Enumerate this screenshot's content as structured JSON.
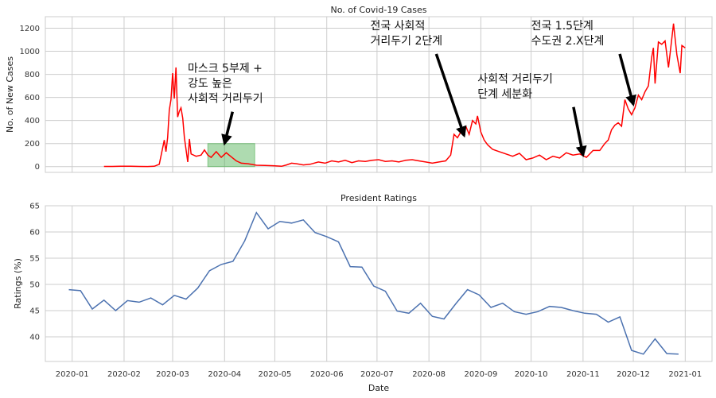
{
  "chart_data": [
    {
      "type": "line",
      "title": "No. of Covid-19 Cases",
      "ylabel": "No. of New Cases",
      "xlabel": "",
      "ylim": [
        -50,
        1300
      ],
      "yticks": [
        0,
        200,
        400,
        600,
        800,
        1000,
        1200
      ],
      "grid": true,
      "line_color": "#ff0000",
      "highlight": {
        "x0": "2020-03-22",
        "x1": "2020-04-19",
        "y0": 0,
        "y1": 200,
        "color": "#4caf50"
      },
      "series": [
        {
          "values": [
            [
              "2020-01-20",
              2
            ],
            [
              "2020-01-25",
              2
            ],
            [
              "2020-01-30",
              3
            ],
            [
              "2020-02-05",
              4
            ],
            [
              "2020-02-10",
              2
            ],
            [
              "2020-02-15",
              1
            ],
            [
              "2020-02-19",
              3
            ],
            [
              "2020-02-22",
              20
            ],
            [
              "2020-02-24",
              160
            ],
            [
              "2020-02-25",
              230
            ],
            [
              "2020-02-26",
              130
            ],
            [
              "2020-02-27",
              250
            ],
            [
              "2020-02-28",
              490
            ],
            [
              "2020-02-29",
              580
            ],
            [
              "2020-03-01",
              810
            ],
            [
              "2020-03-02",
              590
            ],
            [
              "2020-03-03",
              860
            ],
            [
              "2020-03-04",
              430
            ],
            [
              "2020-03-05",
              480
            ],
            [
              "2020-03-06",
              510
            ],
            [
              "2020-03-07",
              420
            ],
            [
              "2020-03-08",
              250
            ],
            [
              "2020-03-10",
              40
            ],
            [
              "2020-03-11",
              240
            ],
            [
              "2020-03-12",
              110
            ],
            [
              "2020-03-15",
              90
            ],
            [
              "2020-03-18",
              100
            ],
            [
              "2020-03-20",
              145
            ],
            [
              "2020-03-22",
              100
            ],
            [
              "2020-03-24",
              80
            ],
            [
              "2020-03-27",
              130
            ],
            [
              "2020-03-30",
              80
            ],
            [
              "2020-04-02",
              120
            ],
            [
              "2020-04-05",
              85
            ],
            [
              "2020-04-08",
              50
            ],
            [
              "2020-04-11",
              30
            ],
            [
              "2020-04-15",
              25
            ],
            [
              "2020-04-20",
              12
            ],
            [
              "2020-04-25",
              10
            ],
            [
              "2020-04-30",
              8
            ],
            [
              "2020-05-05",
              3
            ],
            [
              "2020-05-08",
              15
            ],
            [
              "2020-05-11",
              30
            ],
            [
              "2020-05-14",
              25
            ],
            [
              "2020-05-18",
              15
            ],
            [
              "2020-05-22",
              20
            ],
            [
              "2020-05-27",
              40
            ],
            [
              "2020-05-31",
              30
            ],
            [
              "2020-06-04",
              50
            ],
            [
              "2020-06-08",
              40
            ],
            [
              "2020-06-12",
              55
            ],
            [
              "2020-06-16",
              35
            ],
            [
              "2020-06-20",
              50
            ],
            [
              "2020-06-24",
              45
            ],
            [
              "2020-06-28",
              55
            ],
            [
              "2020-07-02",
              60
            ],
            [
              "2020-07-06",
              45
            ],
            [
              "2020-07-10",
              50
            ],
            [
              "2020-07-14",
              40
            ],
            [
              "2020-07-18",
              55
            ],
            [
              "2020-07-22",
              60
            ],
            [
              "2020-07-26",
              50
            ],
            [
              "2020-07-30",
              40
            ],
            [
              "2020-08-03",
              30
            ],
            [
              "2020-08-07",
              40
            ],
            [
              "2020-08-11",
              50
            ],
            [
              "2020-08-14",
              100
            ],
            [
              "2020-08-16",
              280
            ],
            [
              "2020-08-18",
              250
            ],
            [
              "2020-08-20",
              300
            ],
            [
              "2020-08-23",
              350
            ],
            [
              "2020-08-25",
              280
            ],
            [
              "2020-08-27",
              400
            ],
            [
              "2020-08-29",
              370
            ],
            [
              "2020-08-30",
              440
            ],
            [
              "2020-09-01",
              300
            ],
            [
              "2020-09-03",
              230
            ],
            [
              "2020-09-05",
              190
            ],
            [
              "2020-09-08",
              150
            ],
            [
              "2020-09-12",
              130
            ],
            [
              "2020-09-16",
              110
            ],
            [
              "2020-09-20",
              90
            ],
            [
              "2020-09-24",
              115
            ],
            [
              "2020-09-28",
              60
            ],
            [
              "2020-10-02",
              75
            ],
            [
              "2020-10-06",
              100
            ],
            [
              "2020-10-10",
              60
            ],
            [
              "2020-10-14",
              90
            ],
            [
              "2020-10-18",
              75
            ],
            [
              "2020-10-22",
              120
            ],
            [
              "2020-10-26",
              100
            ],
            [
              "2020-10-30",
              110
            ],
            [
              "2020-11-03",
              80
            ],
            [
              "2020-11-07",
              140
            ],
            [
              "2020-11-11",
              140
            ],
            [
              "2020-11-14",
              200
            ],
            [
              "2020-11-16",
              230
            ],
            [
              "2020-11-18",
              320
            ],
            [
              "2020-11-20",
              360
            ],
            [
              "2020-11-22",
              380
            ],
            [
              "2020-11-24",
              350
            ],
            [
              "2020-11-26",
              580
            ],
            [
              "2020-11-28",
              500
            ],
            [
              "2020-11-30",
              450
            ],
            [
              "2020-12-02",
              510
            ],
            [
              "2020-12-04",
              620
            ],
            [
              "2020-12-06",
              580
            ],
            [
              "2020-12-08",
              650
            ],
            [
              "2020-12-10",
              700
            ],
            [
              "2020-12-12",
              950
            ],
            [
              "2020-12-13",
              1030
            ],
            [
              "2020-12-14",
              720
            ],
            [
              "2020-12-16",
              1080
            ],
            [
              "2020-12-18",
              1060
            ],
            [
              "2020-12-20",
              1090
            ],
            [
              "2020-12-22",
              860
            ],
            [
              "2020-12-25",
              1240
            ],
            [
              "2020-12-27",
              970
            ],
            [
              "2020-12-29",
              810
            ],
            [
              "2020-12-30",
              1050
            ],
            [
              "2021-01-01",
              1030
            ]
          ]
        }
      ],
      "annotations": [
        {
          "lines": [
            "마스크 5부제 +",
            "강도 높은",
            " 사회적 거리두기"
          ],
          "text_at": [
            "2020-03-10",
            820
          ],
          "arrow_to": [
            "2020-04-01",
            200
          ]
        },
        {
          "lines": [
            "전국 사회적",
            " 거리두기 2단계"
          ],
          "text_at": [
            "2020-06-27",
            1190
          ],
          "arrow_to": [
            "2020-08-22",
            270
          ]
        },
        {
          "lines": [
            "사회적 거리두기",
            " 단계 세분화"
          ],
          "text_at": [
            "2020-08-30",
            730
          ],
          "arrow_to": [
            "2020-11-01",
            100
          ]
        },
        {
          "lines": [
            "전국 1.5단계",
            " 수도권 2.X단계"
          ],
          "text_at": [
            "2020-10-01",
            1190
          ],
          "arrow_to": [
            "2020-12-01",
            540
          ]
        }
      ]
    },
    {
      "type": "line",
      "title": "President Ratings",
      "ylabel": "Ratings (%)",
      "xlabel": "Date",
      "ylim": [
        35.3,
        65
      ],
      "yticks": [
        40,
        45,
        50,
        55,
        60,
        65
      ],
      "grid": true,
      "line_color": "#4c72b0",
      "series": [
        {
          "values": [
            [
              "2019-12-30",
              49.0
            ],
            [
              "2020-01-06",
              48.8
            ],
            [
              "2020-01-13",
              45.3
            ],
            [
              "2020-01-20",
              47.0
            ],
            [
              "2020-01-27",
              45.0
            ],
            [
              "2020-02-03",
              46.9
            ],
            [
              "2020-02-10",
              46.6
            ],
            [
              "2020-02-17",
              47.4
            ],
            [
              "2020-02-24",
              46.1
            ],
            [
              "2020-03-02",
              47.9
            ],
            [
              "2020-03-09",
              47.2
            ],
            [
              "2020-03-16",
              49.3
            ],
            [
              "2020-03-23",
              52.6
            ],
            [
              "2020-03-30",
              53.8
            ],
            [
              "2020-04-06",
              54.4
            ],
            [
              "2020-04-13",
              58.3
            ],
            [
              "2020-04-20",
              63.7
            ],
            [
              "2020-04-27",
              60.6
            ],
            [
              "2020-05-04",
              62.0
            ],
            [
              "2020-05-11",
              61.7
            ],
            [
              "2020-05-18",
              62.3
            ],
            [
              "2020-05-25",
              59.9
            ],
            [
              "2020-06-01",
              59.1
            ],
            [
              "2020-06-08",
              58.1
            ],
            [
              "2020-06-15",
              53.4
            ],
            [
              "2020-06-22",
              53.3
            ],
            [
              "2020-06-29",
              49.7
            ],
            [
              "2020-07-06",
              48.7
            ],
            [
              "2020-07-13",
              44.9
            ],
            [
              "2020-07-20",
              44.5
            ],
            [
              "2020-07-27",
              46.4
            ],
            [
              "2020-08-03",
              43.9
            ],
            [
              "2020-08-10",
              43.4
            ],
            [
              "2020-08-17",
              46.3
            ],
            [
              "2020-08-24",
              49.0
            ],
            [
              "2020-08-31",
              48.0
            ],
            [
              "2020-09-07",
              45.6
            ],
            [
              "2020-09-14",
              46.4
            ],
            [
              "2020-09-21",
              44.8
            ],
            [
              "2020-09-28",
              44.3
            ],
            [
              "2020-10-05",
              44.8
            ],
            [
              "2020-10-12",
              45.8
            ],
            [
              "2020-10-19",
              45.6
            ],
            [
              "2020-10-26",
              45.0
            ],
            [
              "2020-11-02",
              44.5
            ],
            [
              "2020-11-09",
              44.3
            ],
            [
              "2020-11-16",
              42.8
            ],
            [
              "2020-11-23",
              43.8
            ],
            [
              "2020-11-30",
              37.4
            ],
            [
              "2020-12-07",
              36.7
            ],
            [
              "2020-12-14",
              39.6
            ],
            [
              "2020-12-21",
              36.8
            ],
            [
              "2020-12-28",
              36.7
            ]
          ]
        }
      ]
    }
  ],
  "x_axis": {
    "label": "Date",
    "ticks": [
      "2020-01",
      "2020-02",
      "2020-03",
      "2020-04",
      "2020-05",
      "2020-06",
      "2020-07",
      "2020-08",
      "2020-09",
      "2020-10",
      "2020-11",
      "2020-12",
      "2021-01"
    ],
    "range": [
      "2019-12-16",
      "2021-01-17"
    ]
  }
}
